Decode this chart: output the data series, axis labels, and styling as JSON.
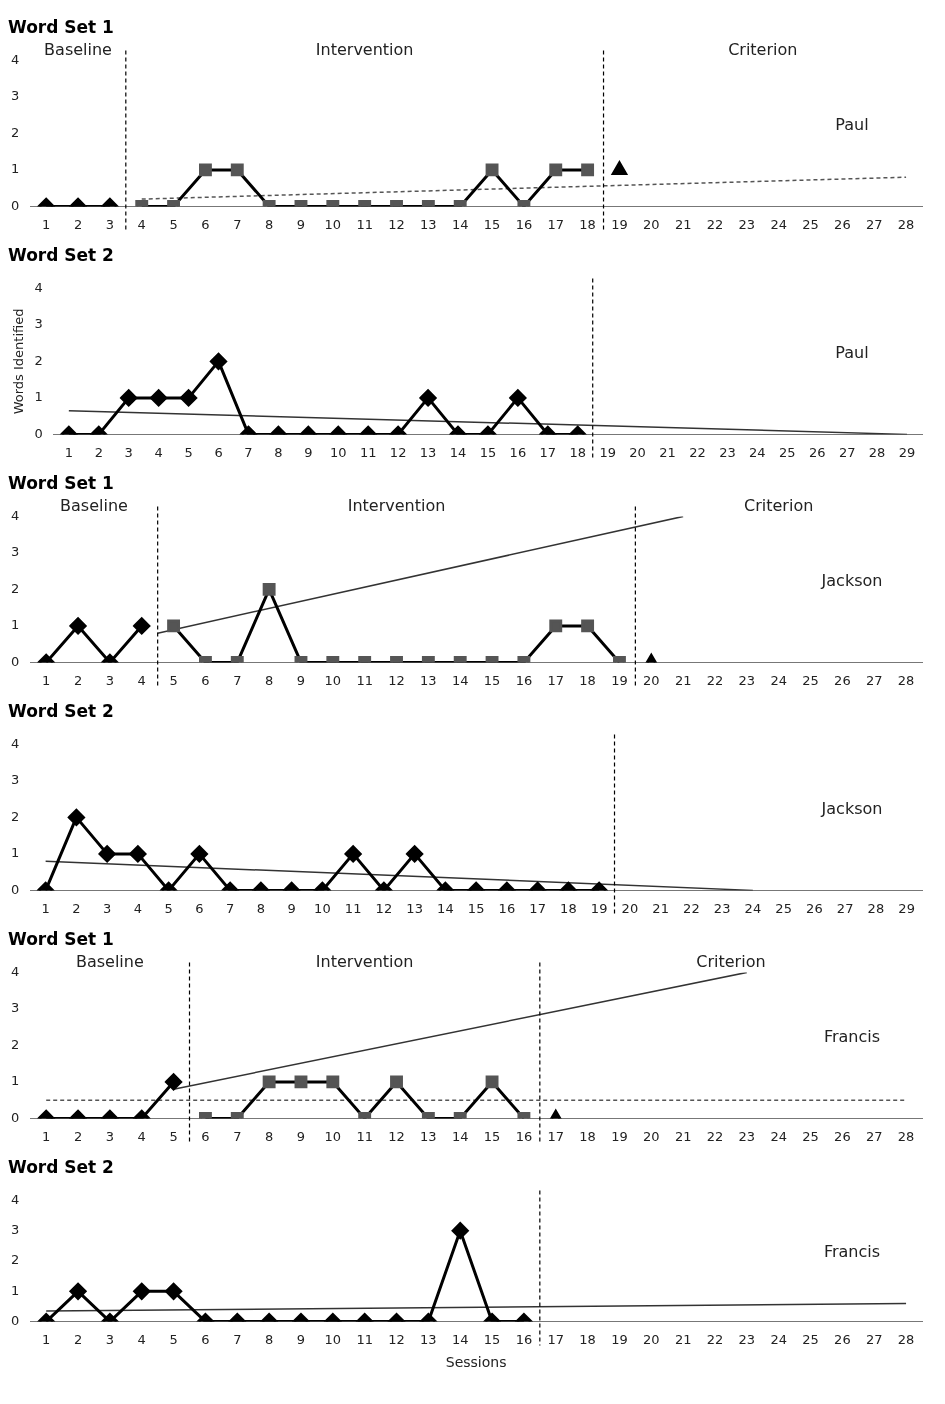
{
  "chart_data": [
    {
      "type": "line",
      "title": "Word Set 1",
      "xlim": [
        0.5,
        28.5
      ],
      "xticks": [
        1,
        2,
        3,
        4,
        5,
        6,
        7,
        8,
        9,
        10,
        11,
        12,
        13,
        14,
        15,
        16,
        17,
        18,
        19,
        20,
        21,
        22,
        23,
        24,
        25,
        26,
        27,
        28
      ],
      "ylim": [
        0,
        4
      ],
      "yticks": [
        0,
        1,
        2,
        3,
        4
      ],
      "grid": false,
      "legend": false,
      "series": [
        {
          "color": "#000000",
          "marker": "diamond",
          "x": [
            1,
            2,
            3
          ],
          "values": [
            0,
            0,
            0
          ]
        },
        {
          "color": "#555555",
          "marker": "square",
          "x": [
            4,
            5,
            6,
            7,
            8,
            9,
            10,
            11,
            12,
            13,
            14,
            15,
            16,
            17,
            18
          ],
          "values": [
            0,
            0,
            1,
            1,
            0,
            0,
            0,
            0,
            0,
            0,
            0,
            1,
            0,
            1,
            1
          ]
        },
        {
          "color": "#000000",
          "marker": "triangle",
          "x": [
            19
          ],
          "values": [
            1
          ]
        },
        {
          "color": "#555555",
          "marker": "none",
          "line_style": "dashed",
          "x": [
            4,
            28
          ],
          "values": [
            0.2,
            0.8
          ]
        }
      ],
      "ref_lines": [
        {
          "axis": "x",
          "value": 3.5,
          "line_style": "dashed"
        },
        {
          "axis": "x",
          "value": 18.5,
          "line_style": "dashed"
        }
      ],
      "annotations": [
        "Baseline",
        "Intervention",
        "Criterion",
        "Paul"
      ]
    },
    {
      "type": "line",
      "title": "Word Set 2",
      "ylabel": "Words Identified",
      "xlim": [
        0.5,
        29.5
      ],
      "xticks": [
        1,
        2,
        3,
        4,
        5,
        6,
        7,
        8,
        9,
        10,
        11,
        12,
        13,
        14,
        15,
        16,
        17,
        18,
        19,
        20,
        21,
        22,
        23,
        24,
        25,
        26,
        27,
        28,
        29
      ],
      "ylim": [
        0,
        4
      ],
      "yticks": [
        0,
        1,
        2,
        3,
        4
      ],
      "grid": false,
      "legend": false,
      "series": [
        {
          "color": "#000000",
          "marker": "diamond",
          "x": [
            1,
            2,
            3,
            4,
            5,
            6,
            7,
            8,
            9,
            10,
            11,
            12,
            13,
            14,
            15,
            16,
            17,
            18
          ],
          "values": [
            0,
            0,
            1,
            1,
            1,
            2,
            0,
            0,
            0,
            0,
            0,
            0,
            1,
            0,
            0,
            1,
            0,
            0
          ]
        },
        {
          "color": "#333333",
          "marker": "none",
          "line_style": "solid",
          "x": [
            1,
            29
          ],
          "values": [
            0.65,
            0
          ]
        }
      ],
      "ref_lines": [
        {
          "axis": "x",
          "value": 18.5,
          "line_style": "dashed"
        }
      ],
      "annotations": [
        "Paul"
      ]
    },
    {
      "type": "line",
      "title": "Word Set 1",
      "xlim": [
        0.5,
        28.5
      ],
      "xticks": [
        1,
        2,
        3,
        4,
        5,
        6,
        7,
        8,
        9,
        10,
        11,
        12,
        13,
        14,
        15,
        16,
        17,
        18,
        19,
        20,
        21,
        22,
        23,
        24,
        25,
        26,
        27,
        28
      ],
      "ylim": [
        0,
        4
      ],
      "yticks": [
        0,
        1,
        2,
        3,
        4
      ],
      "grid": false,
      "legend": false,
      "series": [
        {
          "color": "#000000",
          "marker": "diamond",
          "x": [
            1,
            2,
            3,
            4
          ],
          "values": [
            0,
            1,
            0,
            1
          ]
        },
        {
          "color": "#555555",
          "marker": "square",
          "x": [
            5,
            6,
            7,
            8,
            9,
            10,
            11,
            12,
            13,
            14,
            15,
            16,
            17,
            18,
            19
          ],
          "values": [
            1,
            0,
            0,
            2,
            0,
            0,
            0,
            0,
            0,
            0,
            0,
            0,
            1,
            1,
            0
          ]
        },
        {
          "color": "#000000",
          "marker": "triangle",
          "x": [
            20
          ],
          "values": [
            0
          ]
        },
        {
          "color": "#333333",
          "marker": "none",
          "line_style": "solid",
          "x": [
            4.5,
            21
          ],
          "values": [
            0.8,
            4
          ]
        }
      ],
      "ref_lines": [
        {
          "axis": "x",
          "value": 4.5,
          "line_style": "dashed"
        },
        {
          "axis": "x",
          "value": 19.5,
          "line_style": "dashed"
        }
      ],
      "annotations": [
        "Baseline",
        "Intervention",
        "Criterion",
        "Jackson"
      ]
    },
    {
      "type": "line",
      "title": "Word Set 2",
      "xlim": [
        0.5,
        29.5
      ],
      "xticks": [
        1,
        2,
        3,
        4,
        5,
        6,
        7,
        8,
        9,
        10,
        11,
        12,
        13,
        14,
        15,
        16,
        17,
        18,
        19,
        20,
        21,
        22,
        23,
        24,
        25,
        26,
        27,
        28,
        29
      ],
      "ylim": [
        0,
        4
      ],
      "yticks": [
        0,
        1,
        2,
        3,
        4
      ],
      "grid": false,
      "legend": false,
      "series": [
        {
          "color": "#000000",
          "marker": "diamond",
          "x": [
            1,
            2,
            3,
            4,
            5,
            6,
            7,
            8,
            9,
            10,
            11,
            12,
            13,
            14,
            15,
            16,
            17,
            18,
            19
          ],
          "values": [
            0,
            2,
            1,
            1,
            0,
            1,
            0,
            0,
            0,
            0,
            1,
            0,
            1,
            0,
            0,
            0,
            0,
            0,
            0
          ]
        },
        {
          "color": "#333333",
          "marker": "none",
          "line_style": "solid",
          "x": [
            1,
            24
          ],
          "values": [
            0.8,
            0
          ]
        }
      ],
      "ref_lines": [
        {
          "axis": "x",
          "value": 19.5,
          "line_style": "dashed"
        }
      ],
      "annotations": [
        "Jackson"
      ]
    },
    {
      "type": "line",
      "title": "Word Set 1",
      "xlim": [
        0.5,
        28.5
      ],
      "xticks": [
        1,
        2,
        3,
        4,
        5,
        6,
        7,
        8,
        9,
        10,
        11,
        12,
        13,
        14,
        15,
        16,
        17,
        18,
        19,
        20,
        21,
        22,
        23,
        24,
        25,
        26,
        27,
        28
      ],
      "ylim": [
        0,
        4
      ],
      "yticks": [
        0,
        1,
        2,
        3,
        4
      ],
      "grid": false,
      "legend": false,
      "series": [
        {
          "color": "#000000",
          "marker": "diamond",
          "x": [
            1,
            2,
            3,
            4,
            5
          ],
          "values": [
            0,
            0,
            0,
            0,
            1
          ]
        },
        {
          "color": "#555555",
          "marker": "square",
          "x": [
            6,
            7,
            8,
            9,
            10,
            11,
            12,
            13,
            14,
            15,
            16
          ],
          "values": [
            0,
            0,
            1,
            1,
            1,
            0,
            1,
            0,
            0,
            1,
            0
          ]
        },
        {
          "color": "#000000",
          "marker": "triangle",
          "x": [
            17
          ],
          "values": [
            0
          ]
        },
        {
          "color": "#333333",
          "marker": "none",
          "line_style": "solid",
          "x": [
            5,
            23
          ],
          "values": [
            0.8,
            4
          ]
        },
        {
          "color": "#555555",
          "marker": "none",
          "line_style": "dashed",
          "x": [
            1,
            28
          ],
          "values": [
            0.5,
            0.5
          ]
        }
      ],
      "ref_lines": [
        {
          "axis": "x",
          "value": 5.5,
          "line_style": "dashed"
        },
        {
          "axis": "x",
          "value": 16.5,
          "line_style": "dashed"
        }
      ],
      "annotations": [
        "Baseline",
        "Intervention",
        "Criterion",
        "Francis"
      ]
    },
    {
      "type": "line",
      "title": "Word Set 2",
      "xlabel": "Sessions",
      "xlim": [
        0.5,
        28.5
      ],
      "xticks": [
        1,
        2,
        3,
        4,
        5,
        6,
        7,
        8,
        9,
        10,
        11,
        12,
        13,
        14,
        15,
        16,
        17,
        18,
        19,
        20,
        21,
        22,
        23,
        24,
        25,
        26,
        27,
        28
      ],
      "ylim": [
        0,
        4
      ],
      "yticks": [
        0,
        1,
        2,
        3,
        4
      ],
      "grid": false,
      "legend": false,
      "series": [
        {
          "color": "#000000",
          "marker": "diamond",
          "x": [
            1,
            2,
            3,
            4,
            5,
            6,
            7,
            8,
            9,
            10,
            11,
            12,
            13,
            14,
            15,
            16
          ],
          "values": [
            0,
            1,
            0,
            1,
            1,
            0,
            0,
            0,
            0,
            0,
            0,
            0,
            0,
            3,
            0,
            0
          ]
        },
        {
          "color": "#333333",
          "marker": "none",
          "line_style": "solid",
          "x": [
            1,
            28
          ],
          "values": [
            0.35,
            0.6
          ]
        }
      ],
      "ref_lines": [
        {
          "axis": "x",
          "value": 16.5,
          "line_style": "dashed"
        }
      ],
      "annotations": [
        "Francis"
      ]
    }
  ]
}
